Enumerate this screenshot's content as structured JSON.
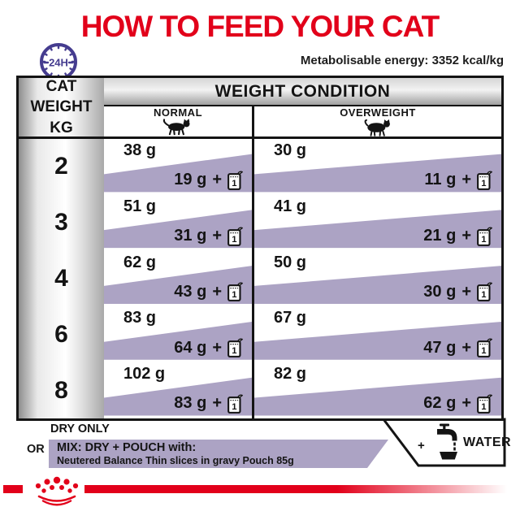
{
  "title": "HOW TO FEED YOUR CAT",
  "energy_note": "Metabolisable energy: 3352 kcal/kg",
  "clock": {
    "label": "24H"
  },
  "table": {
    "row_header": "CAT\nWEIGHT\nKG",
    "header": "WEIGHT CONDITION",
    "columns": [
      {
        "label": "NORMAL",
        "icon": "normal-cat-icon"
      },
      {
        "label": "OVERWEIGHT",
        "icon": "overweight-cat-icon"
      }
    ],
    "plus": "+",
    "pouch_count": "1",
    "rows": [
      {
        "weight": "2",
        "normal_dry": "38 g",
        "normal_mix": "19 g",
        "overweight_dry": "30 g",
        "overweight_mix": "11 g"
      },
      {
        "weight": "3",
        "normal_dry": "51 g",
        "normal_mix": "31 g",
        "overweight_dry": "41 g",
        "overweight_mix": "21 g"
      },
      {
        "weight": "4",
        "normal_dry": "62 g",
        "normal_mix": "43 g",
        "overweight_dry": "50 g",
        "overweight_mix": "30 g"
      },
      {
        "weight": "6",
        "normal_dry": "83 g",
        "normal_mix": "64 g",
        "overweight_dry": "67 g",
        "overweight_mix": "47 g"
      },
      {
        "weight": "8",
        "normal_dry": "102 g",
        "normal_mix": "83 g",
        "overweight_dry": "82 g",
        "overweight_mix": "62 g"
      }
    ]
  },
  "legend": {
    "dry_only": "DRY ONLY",
    "or": "OR",
    "mix_title": "MIX: DRY + POUCH with:",
    "mix_detail": "Neutered Balance Thin slices in gravy Pouch 85g",
    "water_plus": "+",
    "water": "WATER"
  },
  "colors": {
    "brand_red": "#E2001A",
    "accent_purple": "#ACA3C4",
    "clock_indigo": "#453C8F",
    "table_border": "#141414"
  }
}
